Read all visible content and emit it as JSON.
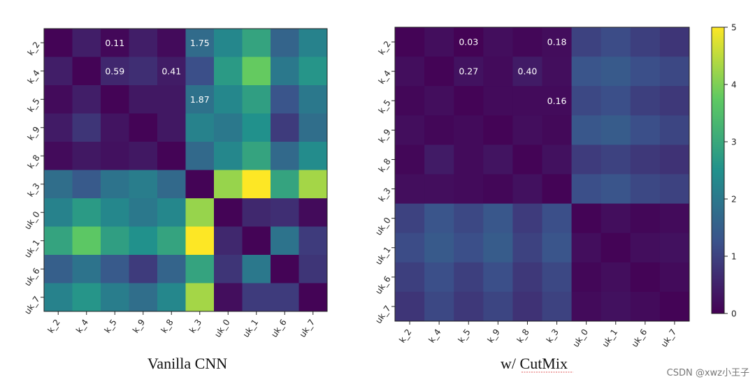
{
  "chart_data": [
    {
      "type": "heatmap",
      "title": "Vanilla CNN",
      "categories": [
        "k_2",
        "k_4",
        "k_5",
        "k_9",
        "k_8",
        "k_3",
        "uk_0",
        "uk_1",
        "uk_6",
        "uk_7"
      ],
      "values": [
        [
          0.05,
          0.45,
          0.11,
          0.45,
          0.15,
          1.75,
          2.3,
          2.9,
          1.6,
          2.2
        ],
        [
          0.45,
          0.05,
          0.59,
          0.7,
          0.41,
          1.2,
          2.7,
          3.8,
          2.0,
          2.6
        ],
        [
          0.15,
          0.45,
          0.05,
          0.35,
          0.35,
          1.87,
          2.3,
          2.8,
          1.3,
          2.0
        ],
        [
          0.4,
          0.8,
          0.3,
          0.05,
          0.35,
          2.2,
          2.0,
          2.5,
          0.9,
          1.8
        ],
        [
          0.15,
          0.35,
          0.25,
          0.35,
          0.05,
          1.7,
          2.3,
          2.9,
          1.7,
          2.4
        ],
        [
          1.8,
          1.4,
          1.9,
          2.1,
          1.7,
          0.05,
          4.2,
          5.0,
          2.9,
          4.3
        ],
        [
          2.2,
          2.7,
          2.3,
          2.0,
          2.3,
          4.2,
          0.05,
          0.6,
          0.7,
          0.15
        ],
        [
          2.9,
          3.7,
          2.8,
          2.5,
          2.9,
          5.0,
          0.6,
          0.05,
          1.9,
          0.9
        ],
        [
          1.5,
          1.9,
          1.4,
          0.9,
          1.6,
          2.9,
          0.8,
          2.0,
          0.05,
          0.8
        ],
        [
          2.2,
          2.6,
          2.1,
          1.8,
          2.3,
          4.3,
          0.2,
          0.9,
          0.9,
          0.05
        ]
      ],
      "annotations": [
        {
          "row": 0,
          "col": 2,
          "text": "0.11"
        },
        {
          "row": 0,
          "col": 5,
          "text": "1.75"
        },
        {
          "row": 1,
          "col": 2,
          "text": "0.59"
        },
        {
          "row": 1,
          "col": 4,
          "text": "0.41"
        },
        {
          "row": 2,
          "col": 5,
          "text": "1.87"
        }
      ],
      "vmin": 0,
      "vmax": 5
    },
    {
      "type": "heatmap",
      "title": "w/ CutMix",
      "categories": [
        "k_2",
        "k_4",
        "k_5",
        "k_9",
        "k_8",
        "k_3",
        "uk_0",
        "uk_1",
        "uk_6",
        "uk_7"
      ],
      "values": [
        [
          0.05,
          0.2,
          0.03,
          0.2,
          0.1,
          0.18,
          1.0,
          1.15,
          0.95,
          0.8
        ],
        [
          0.2,
          0.05,
          0.27,
          0.15,
          0.4,
          0.2,
          1.3,
          1.4,
          1.2,
          1.1
        ],
        [
          0.1,
          0.2,
          0.05,
          0.15,
          0.15,
          0.16,
          1.1,
          1.2,
          0.95,
          0.85
        ],
        [
          0.2,
          0.1,
          0.15,
          0.05,
          0.2,
          0.12,
          1.35,
          1.45,
          1.2,
          1.05
        ],
        [
          0.1,
          0.4,
          0.15,
          0.3,
          0.05,
          0.25,
          0.9,
          1.0,
          0.85,
          0.75
        ],
        [
          0.2,
          0.2,
          0.15,
          0.1,
          0.25,
          0.05,
          1.2,
          1.3,
          1.1,
          1.0
        ],
        [
          1.0,
          1.3,
          1.1,
          1.35,
          0.9,
          1.2,
          0.05,
          0.2,
          0.1,
          0.15
        ],
        [
          1.15,
          1.4,
          1.2,
          1.45,
          1.0,
          1.3,
          0.2,
          0.05,
          0.2,
          0.25
        ],
        [
          0.95,
          1.2,
          0.95,
          1.2,
          0.85,
          1.1,
          0.1,
          0.2,
          0.05,
          0.15
        ],
        [
          0.8,
          1.1,
          0.85,
          1.05,
          0.75,
          1.0,
          0.15,
          0.25,
          0.15,
          0.05
        ]
      ],
      "annotations": [
        {
          "row": 0,
          "col": 2,
          "text": "0.03"
        },
        {
          "row": 0,
          "col": 5,
          "text": "0.18"
        },
        {
          "row": 1,
          "col": 2,
          "text": "0.27"
        },
        {
          "row": 1,
          "col": 4,
          "text": "0.40"
        },
        {
          "row": 2,
          "col": 5,
          "text": "0.16"
        }
      ],
      "vmin": 0,
      "vmax": 5
    }
  ],
  "colorbar": {
    "ticks": [
      "0",
      "1",
      "2",
      "3",
      "4",
      "5"
    ],
    "colormap": [
      "#440154",
      "#3b528b",
      "#21918c",
      "#5ec962",
      "#fde725"
    ]
  },
  "watermark": "CSDN @xwz小王子"
}
